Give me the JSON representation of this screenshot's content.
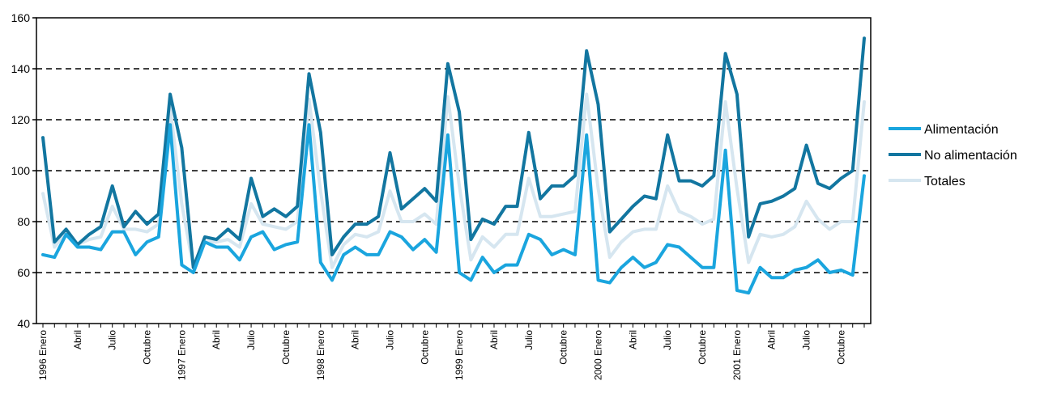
{
  "chart_data": {
    "type": "line",
    "title": "",
    "xlabel": "",
    "ylabel": "",
    "ylim": [
      40,
      160
    ],
    "yticks": [
      40,
      60,
      80,
      100,
      120,
      140,
      160
    ],
    "grid": "horizontal-dashed",
    "legend_position": "right",
    "x_tick_labels": [
      {
        "index": 0,
        "label": "1996 Enero"
      },
      {
        "index": 3,
        "label": "Abril"
      },
      {
        "index": 6,
        "label": "Julio"
      },
      {
        "index": 9,
        "label": "Octubre"
      },
      {
        "index": 12,
        "label": "1997 Enero"
      },
      {
        "index": 15,
        "label": "Abril"
      },
      {
        "index": 18,
        "label": "Julio"
      },
      {
        "index": 21,
        "label": "Octubre"
      },
      {
        "index": 24,
        "label": "1998 Enero"
      },
      {
        "index": 27,
        "label": "Abril"
      },
      {
        "index": 30,
        "label": "Julio"
      },
      {
        "index": 33,
        "label": "Octubre"
      },
      {
        "index": 36,
        "label": "1999 Enero"
      },
      {
        "index": 39,
        "label": "Abril"
      },
      {
        "index": 42,
        "label": "Julio"
      },
      {
        "index": 45,
        "label": "Octubre"
      },
      {
        "index": 48,
        "label": "2000 Enero"
      },
      {
        "index": 51,
        "label": "Abril"
      },
      {
        "index": 54,
        "label": "Julio"
      },
      {
        "index": 57,
        "label": "Octubre"
      },
      {
        "index": 60,
        "label": "2001 Enero"
      },
      {
        "index": 63,
        "label": "Abril"
      },
      {
        "index": 66,
        "label": "Julio"
      },
      {
        "index": 69,
        "label": "Octubre"
      }
    ],
    "series": [
      {
        "name": "Alimentación",
        "color": "#1aa5de",
        "values": [
          67,
          66,
          75,
          70,
          70,
          69,
          76,
          76,
          67,
          72,
          74,
          118,
          63,
          60,
          72,
          70,
          70,
          65,
          74,
          76,
          69,
          71,
          72,
          118,
          64,
          57,
          67,
          70,
          67,
          67,
          76,
          74,
          69,
          73,
          68,
          114,
          60,
          57,
          66,
          60,
          63,
          63,
          75,
          73,
          67,
          69,
          67,
          114,
          57,
          56,
          62,
          66,
          62,
          64,
          71,
          70,
          66,
          62,
          62,
          108,
          53,
          52,
          62,
          58,
          58,
          61,
          62,
          65,
          60,
          61,
          59,
          98
        ]
      },
      {
        "name": "No alimentación",
        "color": "#1276a0",
        "values": [
          113,
          72,
          77,
          71,
          75,
          78,
          94,
          78,
          84,
          79,
          83,
          130,
          109,
          62,
          74,
          73,
          77,
          73,
          97,
          82,
          85,
          82,
          86,
          138,
          115,
          67,
          74,
          79,
          79,
          82,
          107,
          85,
          89,
          93,
          88,
          142,
          123,
          73,
          81,
          79,
          86,
          86,
          115,
          89,
          94,
          94,
          98,
          147,
          126,
          76,
          81,
          86,
          90,
          89,
          114,
          96,
          96,
          94,
          98,
          146,
          130,
          74,
          87,
          88,
          90,
          93,
          110,
          95,
          93,
          97,
          100,
          152
        ]
      },
      {
        "name": "Totales",
        "color": "#d6e6f0",
        "values": [
          91,
          70,
          76,
          71,
          73,
          74,
          86,
          77,
          77,
          76,
          79,
          125,
          87,
          62,
          72,
          72,
          73,
          70,
          87,
          79,
          78,
          77,
          80,
          128,
          92,
          62,
          71,
          75,
          74,
          76,
          92,
          80,
          80,
          83,
          79,
          129,
          94,
          65,
          74,
          70,
          75,
          75,
          97,
          82,
          82,
          83,
          84,
          130,
          93,
          66,
          72,
          76,
          77,
          77,
          94,
          84,
          82,
          79,
          81,
          127,
          93,
          64,
          75,
          74,
          75,
          78,
          88,
          81,
          77,
          80,
          80,
          127
        ]
      }
    ]
  }
}
